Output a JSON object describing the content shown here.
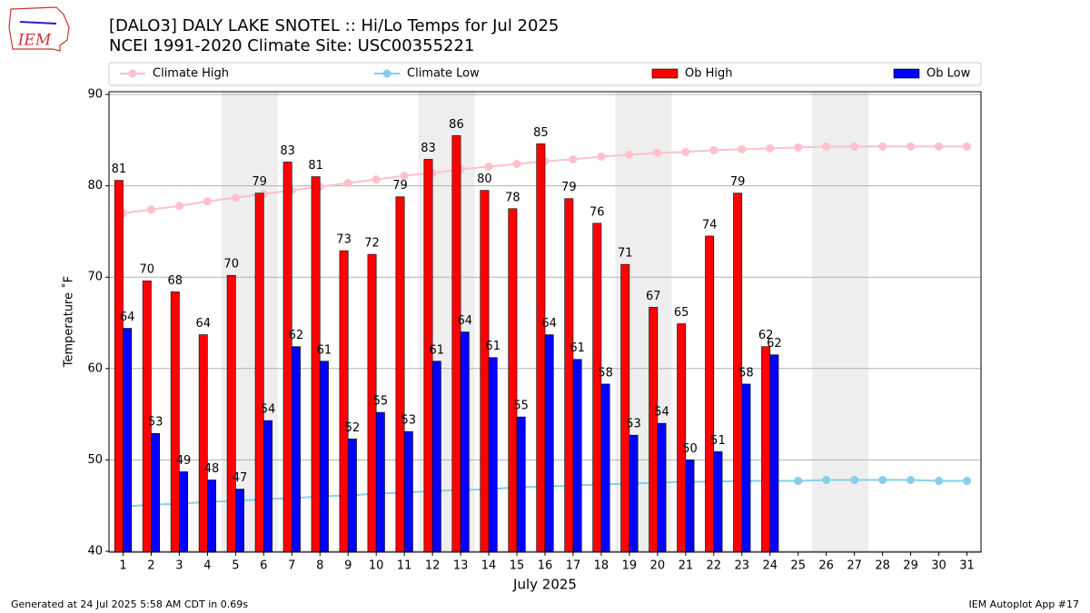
{
  "chart_data": {
    "type": "bar",
    "title": "[DALO3] DALY LAKE SNOTEL :: Hi/Lo Temps for Jul 2025",
    "subtitle": "NCEI 1991-2020 Climate Site: USC00355221",
    "x_label": "July 2025",
    "y_label": "Temperature ˚F",
    "logo": "IEM",
    "footer_left": "Generated at 24 Jul 2025 5:58 AM CDT in 0.69s",
    "footer_right": "IEM Autoplot App #17",
    "x": [
      1,
      2,
      3,
      4,
      5,
      6,
      7,
      8,
      9,
      10,
      11,
      12,
      13,
      14,
      15,
      16,
      17,
      18,
      19,
      20,
      21,
      22,
      23,
      24,
      25,
      26,
      27,
      28,
      29,
      30,
      31
    ],
    "xlim": [
      0.5,
      31.5
    ],
    "xticks": [
      1,
      2,
      3,
      4,
      5,
      6,
      7,
      8,
      9,
      10,
      11,
      12,
      13,
      14,
      15,
      16,
      17,
      18,
      19,
      20,
      21,
      22,
      23,
      24,
      25,
      26,
      27,
      28,
      29,
      30,
      31
    ],
    "ylim": [
      39.9,
      90.3
    ],
    "yticks": [
      40,
      50,
      60,
      70,
      80,
      90
    ],
    "grid": true,
    "shaded_spans": [
      [
        5,
        6
      ],
      [
        12,
        13
      ],
      [
        19,
        20
      ],
      [
        26,
        27
      ]
    ],
    "shade_color": "#eeeeee",
    "legend": "top",
    "series": [
      {
        "name": "Climate High",
        "type": "line",
        "color": "#ffc0cb",
        "values": [
          77.0,
          77.4,
          77.8,
          78.3,
          78.7,
          79.1,
          79.5,
          79.9,
          80.3,
          80.7,
          81.1,
          81.4,
          81.8,
          82.1,
          82.4,
          82.7,
          82.9,
          83.2,
          83.4,
          83.6,
          83.7,
          83.9,
          84.0,
          84.1,
          84.2,
          84.3,
          84.3,
          84.3,
          84.3,
          84.3,
          84.3
        ]
      },
      {
        "name": "Climate Low",
        "type": "line",
        "color": "#87ceeb",
        "values": [
          44.9,
          45.1,
          45.2,
          45.4,
          45.5,
          45.7,
          45.8,
          46.0,
          46.1,
          46.3,
          46.4,
          46.6,
          46.7,
          46.8,
          47.0,
          47.1,
          47.2,
          47.3,
          47.4,
          47.5,
          47.6,
          47.6,
          47.7,
          47.7,
          47.7,
          47.8,
          47.8,
          47.8,
          47.8,
          47.7,
          47.7
        ]
      },
      {
        "name": "Ob High",
        "type": "bar",
        "color": "#ff0000",
        "values": [
          80.6,
          69.6,
          68.4,
          63.7,
          70.2,
          79.2,
          82.6,
          81.0,
          72.9,
          72.5,
          78.8,
          82.9,
          85.5,
          79.5,
          77.5,
          84.6,
          78.6,
          75.9,
          71.4,
          66.7,
          64.9,
          74.5,
          79.2,
          62.4,
          null,
          null,
          null,
          null,
          null,
          null,
          null
        ],
        "value_labels": [
          "81",
          "70",
          "68",
          "64",
          "70",
          "79",
          "83",
          "81",
          "73",
          "72",
          "79",
          "83",
          "86",
          "80",
          "78",
          "85",
          "79",
          "76",
          "71",
          "67",
          "65",
          "74",
          "79",
          "62",
          null,
          null,
          null,
          null,
          null,
          null,
          null
        ]
      },
      {
        "name": "Ob Low",
        "type": "bar",
        "color": "#0000ff",
        "values": [
          64.4,
          52.9,
          48.7,
          47.8,
          46.8,
          54.3,
          62.4,
          60.8,
          52.3,
          55.2,
          53.1,
          60.8,
          64.0,
          61.2,
          54.7,
          63.7,
          61.0,
          58.3,
          52.7,
          54.0,
          50.0,
          50.9,
          58.3,
          61.5,
          null,
          null,
          null,
          null,
          null,
          null,
          null
        ],
        "value_labels": [
          "64",
          "53",
          "49",
          "48",
          "47",
          "54",
          "62",
          "61",
          "52",
          "55",
          "53",
          "61",
          "64",
          "61",
          "55",
          "64",
          "61",
          "58",
          "53",
          "54",
          "50",
          "51",
          "58",
          "62",
          null,
          null,
          null,
          null,
          null,
          null,
          null
        ]
      }
    ]
  }
}
